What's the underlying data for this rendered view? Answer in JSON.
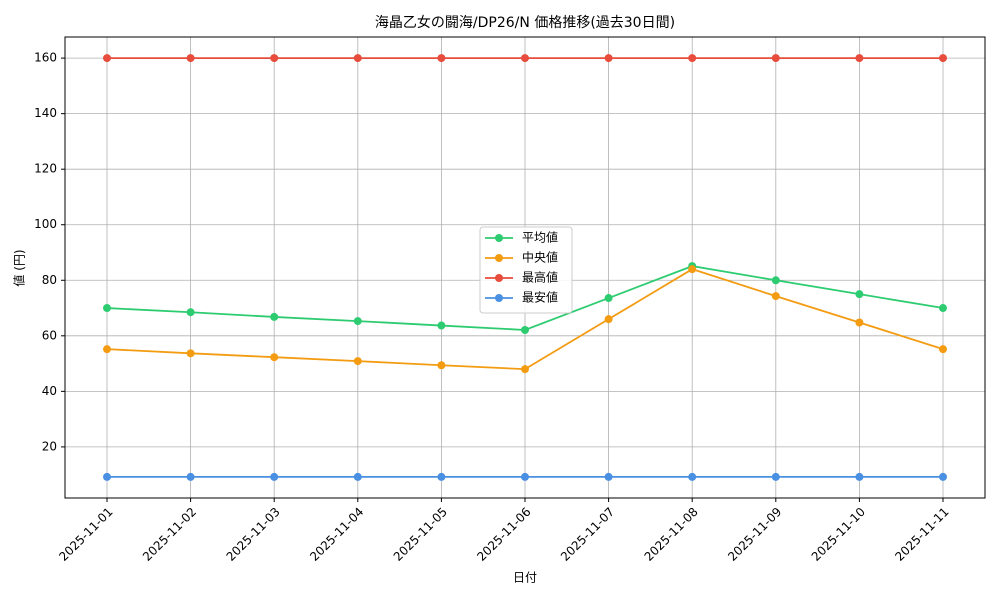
{
  "chart_data": {
    "type": "line",
    "title": "海晶乙女の闘海/DP26/N 価格推移(過去30日間)",
    "x_label": "日付",
    "y_label": "値 (円)",
    "categories": [
      "2025-11-01",
      "2025-11-02",
      "2025-11-03",
      "2025-11-04",
      "2025-11-05",
      "2025-11-06",
      "2025-11-07",
      "2025-11-08",
      "2025-11-09",
      "2025-11-10",
      "2025-11-11"
    ],
    "series": [
      {
        "name": "平均値",
        "color": "#2ecc71",
        "values": [
          70,
          68.5,
          66.8,
          65.3,
          63.7,
          62.1,
          73.6,
          85.1,
          80,
          75,
          70
        ]
      },
      {
        "name": "中央値",
        "color": "#f39c12",
        "values": [
          55.2,
          53.7,
          52.3,
          50.9,
          49.4,
          48,
          66,
          84,
          74.3,
          64.8,
          55.2
        ]
      },
      {
        "name": "最高値",
        "color": "#e74c3c",
        "values": [
          160,
          160,
          160,
          160,
          160,
          160,
          160,
          160,
          160,
          160,
          160
        ]
      },
      {
        "name": "最安値",
        "color": "#4a90e2",
        "values": [
          9.2,
          9.2,
          9.2,
          9.2,
          9.2,
          9.2,
          9.2,
          9.2,
          9.2,
          9.2,
          9.2
        ]
      }
    ],
    "ylim": [
      1.6,
      167.6
    ],
    "yticks": [
      20,
      40,
      60,
      80,
      100,
      120,
      140,
      160
    ],
    "grid": true,
    "legend": "center"
  }
}
